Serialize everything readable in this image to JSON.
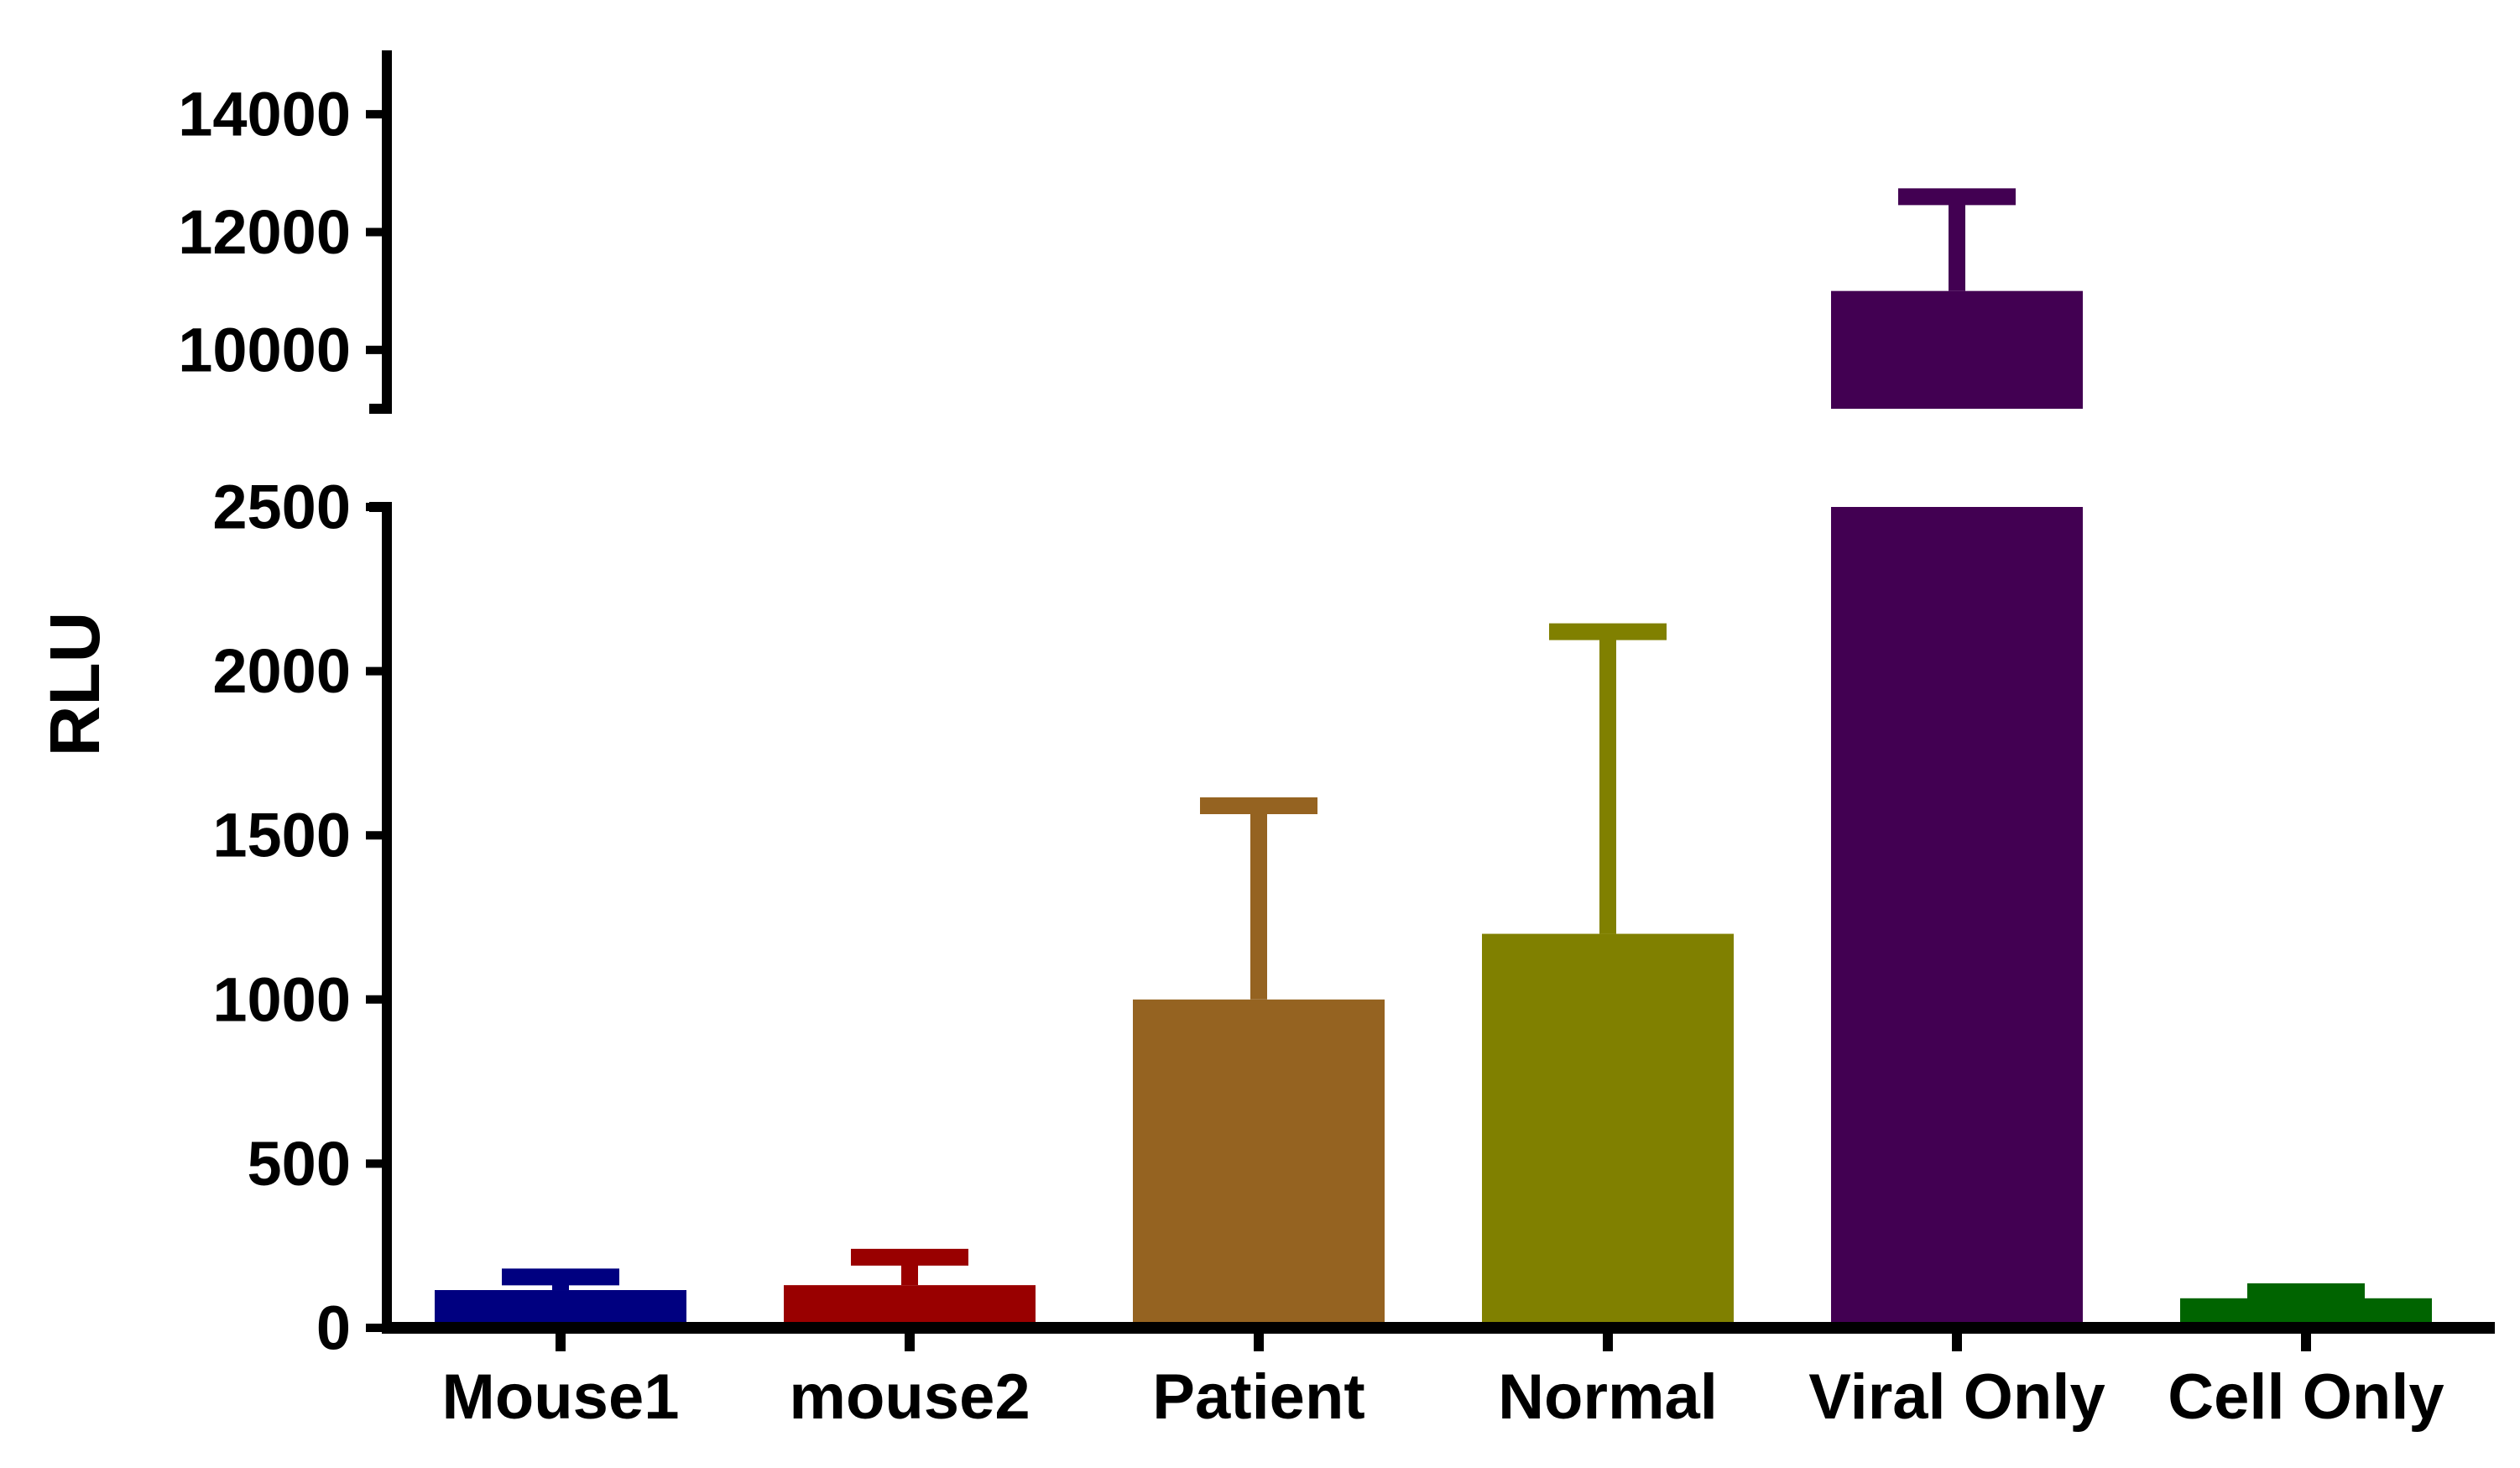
{
  "chart_data": {
    "type": "bar",
    "ylabel": "RLU",
    "xlabel": "",
    "title": "",
    "categories": [
      "Mouse1",
      "mouse2",
      "Patient",
      "Normal",
      "Viral Only",
      "Cell Only"
    ],
    "values": [
      115,
      130,
      1000,
      1200,
      11000,
      90
    ],
    "error_upper": [
      155,
      215,
      1590,
      2120,
      12600,
      110
    ],
    "colors": [
      "#000080",
      "#990000",
      "#956321",
      "#808000",
      "#420052",
      "#006400"
    ],
    "y_axis_break": {
      "lower_segment": {
        "ylim": [
          0,
          2500
        ],
        "ticks": [
          0,
          500,
          1000,
          1500,
          2000,
          2500
        ]
      },
      "upper_segment": {
        "ylim": [
          9000,
          15000
        ],
        "ticks": [
          10000,
          12000,
          14000
        ]
      }
    },
    "grid": false,
    "legend": "none"
  }
}
